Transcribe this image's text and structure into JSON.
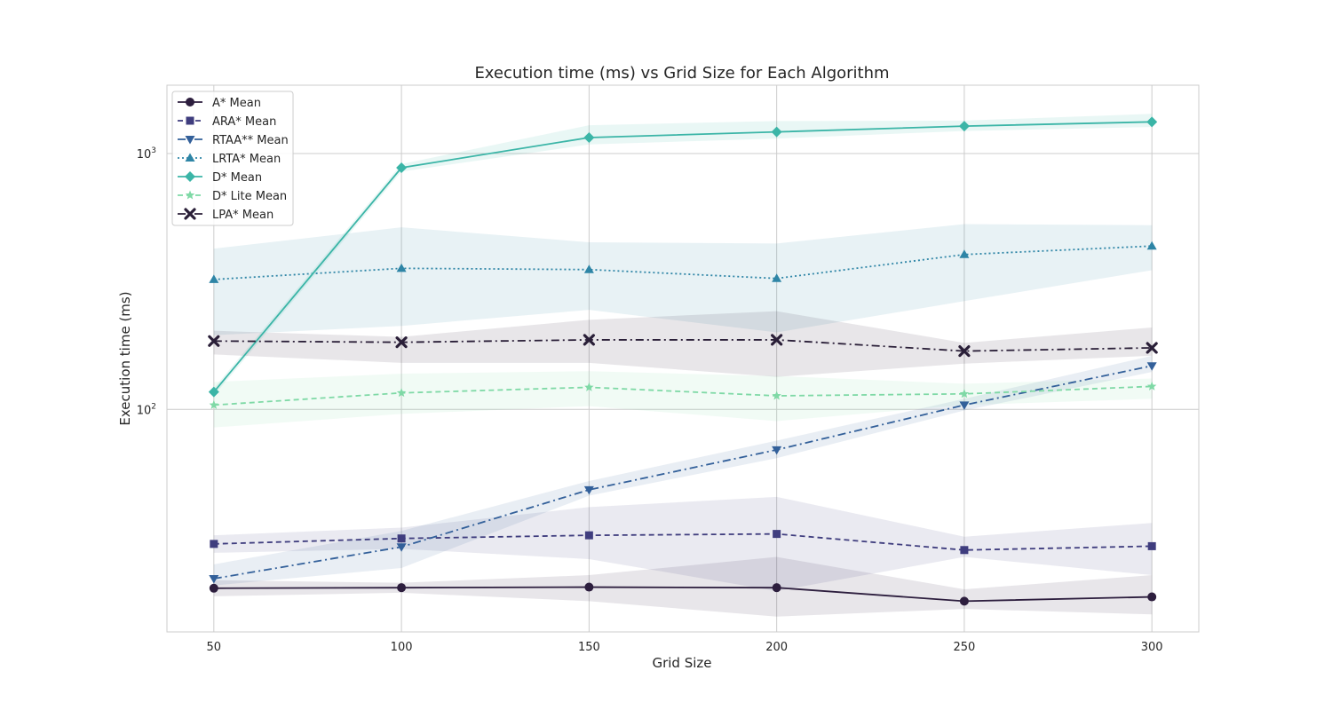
{
  "chart_data": {
    "type": "line",
    "title": "Execution time (ms) vs Grid Size for Each Algorithm",
    "xlabel": "Grid Size",
    "ylabel": "Execution time (ms)",
    "yscale": "log",
    "ylim": [
      13.5,
      1850
    ],
    "xlim": [
      37.5,
      312.5
    ],
    "x": [
      50,
      100,
      150,
      200,
      250,
      300
    ],
    "x_tick_labels": [
      "50",
      "100",
      "150",
      "200",
      "250",
      "300"
    ],
    "y_ticks": [
      100,
      1000
    ],
    "grid": true,
    "legend_position": "upper-left",
    "series": [
      {
        "name": "A* Mean",
        "color": "#2d1e3e",
        "marker": "circle",
        "linestyle": "solid",
        "values": [
          20.0,
          20.1,
          20.2,
          20.1,
          17.8,
          18.5
        ],
        "band_lower": [
          18.6,
          19.2,
          17.8,
          15.5,
          16.6,
          15.8
        ],
        "band_upper": [
          21.5,
          21.0,
          22.5,
          26.5,
          19.8,
          22.5
        ]
      },
      {
        "name": "ARA* Mean",
        "color": "#3f3d7e",
        "marker": "square",
        "linestyle": "dashed",
        "values": [
          29.8,
          31.3,
          32.2,
          32.6,
          28.2,
          29.2
        ],
        "band_lower": [
          27.5,
          28.5,
          26.0,
          19.5,
          26.5,
          22.5
        ],
        "band_upper": [
          32.2,
          34.5,
          41.5,
          45.5,
          31.8,
          36.0
        ]
      },
      {
        "name": "RTAA** Mean",
        "color": "#33609a",
        "marker": "triangle-down",
        "linestyle": "dashdot",
        "values": [
          21.8,
          29.0,
          48.5,
          69.5,
          104,
          148
        ],
        "band_lower": [
          20.5,
          24.0,
          46.0,
          64.5,
          99,
          140
        ],
        "band_upper": [
          24.8,
          33.5,
          52.5,
          75.5,
          110,
          162
        ]
      },
      {
        "name": "LRTA* Mean",
        "color": "#2e85a6",
        "marker": "triangle-up",
        "linestyle": "dotted",
        "values": [
          322,
          356,
          352,
          325,
          403,
          435
        ],
        "band_lower": [
          195,
          212,
          245,
          200,
          265,
          350
        ],
        "band_upper": [
          425,
          515,
          450,
          445,
          530,
          525
        ]
      },
      {
        "name": "D* Mean",
        "color": "#3bb5a7",
        "marker": "diamond",
        "linestyle": "solid",
        "values": [
          117,
          880,
          1155,
          1215,
          1280,
          1330
        ],
        "band_lower": [
          113,
          850,
          1085,
          1145,
          1225,
          1270
        ],
        "band_upper": [
          121,
          910,
          1290,
          1340,
          1345,
          1430
        ]
      },
      {
        "name": "D* Lite Mean",
        "color": "#7fd9a6",
        "marker": "star",
        "linestyle": "dashed",
        "values": [
          104,
          116,
          122,
          113,
          115,
          123
        ],
        "band_lower": [
          85,
          96,
          103,
          90,
          104,
          110
        ],
        "band_upper": [
          128,
          138,
          141,
          135,
          126,
          132
        ]
      },
      {
        "name": "LPA* Mean",
        "color": "#2a1f38",
        "marker": "x",
        "linestyle": "dashdot",
        "values": [
          185,
          183,
          187,
          187,
          169,
          174
        ],
        "band_lower": [
          164,
          152,
          152,
          134,
          151,
          162
        ],
        "band_upper": [
          203,
          192,
          224,
          242,
          182,
          209
        ]
      }
    ]
  }
}
